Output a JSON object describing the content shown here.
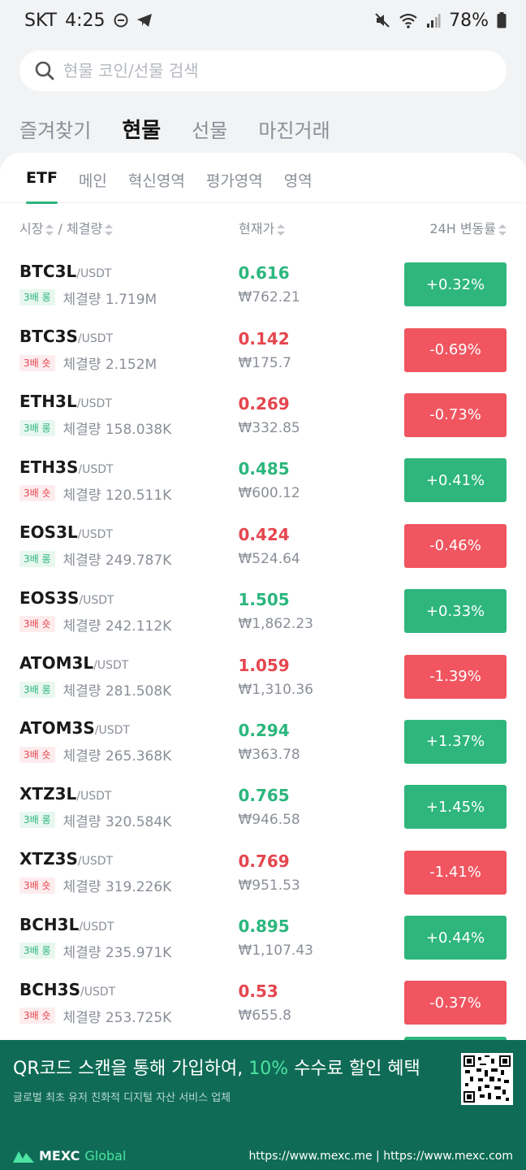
{
  "status_bar": {
    "carrier": "SKT",
    "time": "4:25",
    "battery": "78%"
  },
  "search": {
    "placeholder": "현물 코인/선물 검색"
  },
  "main_tabs": [
    {
      "label": "즐겨찾기"
    },
    {
      "label": "현물",
      "active": true
    },
    {
      "label": "선물"
    },
    {
      "label": "마진거래"
    }
  ],
  "sub_tabs": [
    {
      "label": "ETF",
      "active": true
    },
    {
      "label": "메인"
    },
    {
      "label": "혁신영역"
    },
    {
      "label": "평가영역"
    },
    {
      "label": "영역"
    }
  ],
  "columns": {
    "market": "시장",
    "separator": "/",
    "volume": "체결량",
    "price": "현재가",
    "change": "24H 변동률"
  },
  "rows": [
    {
      "symbol": "BTC3L",
      "quote": "/USDT",
      "badge": "3배 롱",
      "badge_type": "long",
      "volume": "체결량 1.719M",
      "price": "0.616",
      "price_dir": "up",
      "krw": "₩762.21",
      "change": "+0.32%",
      "change_dir": "up"
    },
    {
      "symbol": "BTC3S",
      "quote": "/USDT",
      "badge": "3배 숏",
      "badge_type": "short",
      "volume": "체결량 2.152M",
      "price": "0.142",
      "price_dir": "down",
      "krw": "₩175.7",
      "change": "-0.69%",
      "change_dir": "down"
    },
    {
      "symbol": "ETH3L",
      "quote": "/USDT",
      "badge": "3배 롱",
      "badge_type": "long",
      "volume": "체결량 158.038K",
      "price": "0.269",
      "price_dir": "down",
      "krw": "₩332.85",
      "change": "-0.73%",
      "change_dir": "down"
    },
    {
      "symbol": "ETH3S",
      "quote": "/USDT",
      "badge": "3배 숏",
      "badge_type": "short",
      "volume": "체결량 120.511K",
      "price": "0.485",
      "price_dir": "up",
      "krw": "₩600.12",
      "change": "+0.41%",
      "change_dir": "up"
    },
    {
      "symbol": "EOS3L",
      "quote": "/USDT",
      "badge": "3배 롱",
      "badge_type": "long",
      "volume": "체결량 249.787K",
      "price": "0.424",
      "price_dir": "down",
      "krw": "₩524.64",
      "change": "-0.46%",
      "change_dir": "down"
    },
    {
      "symbol": "EOS3S",
      "quote": "/USDT",
      "badge": "3배 숏",
      "badge_type": "short",
      "volume": "체결량 242.112K",
      "price": "1.505",
      "price_dir": "up",
      "krw": "₩1,862.23",
      "change": "+0.33%",
      "change_dir": "up"
    },
    {
      "symbol": "ATOM3L",
      "quote": "/USDT",
      "badge": "3배 롱",
      "badge_type": "long",
      "volume": "체결량 281.508K",
      "price": "1.059",
      "price_dir": "down",
      "krw": "₩1,310.36",
      "change": "-1.39%",
      "change_dir": "down"
    },
    {
      "symbol": "ATOM3S",
      "quote": "/USDT",
      "badge": "3배 숏",
      "badge_type": "short",
      "volume": "체결량 265.368K",
      "price": "0.294",
      "price_dir": "up",
      "krw": "₩363.78",
      "change": "+1.37%",
      "change_dir": "up"
    },
    {
      "symbol": "XTZ3L",
      "quote": "/USDT",
      "badge": "3배 롱",
      "badge_type": "long",
      "volume": "체결량 320.584K",
      "price": "0.765",
      "price_dir": "up",
      "krw": "₩946.58",
      "change": "+1.45%",
      "change_dir": "up"
    },
    {
      "symbol": "XTZ3S",
      "quote": "/USDT",
      "badge": "3배 숏",
      "badge_type": "short",
      "volume": "체결량 319.226K",
      "price": "0.769",
      "price_dir": "down",
      "krw": "₩951.53",
      "change": "-1.41%",
      "change_dir": "down"
    },
    {
      "symbol": "BCH3L",
      "quote": "/USDT",
      "badge": "3배 롱",
      "badge_type": "long",
      "volume": "체결량 235.971K",
      "price": "0.895",
      "price_dir": "up",
      "krw": "₩1,107.43",
      "change": "+0.44%",
      "change_dir": "up"
    },
    {
      "symbol": "BCH3S",
      "quote": "/USDT",
      "badge": "3배 숏",
      "badge_type": "short",
      "volume": "체결량 253.725K",
      "price": "0.53",
      "price_dir": "down",
      "krw": "₩655.8",
      "change": "-0.37%",
      "change_dir": "down"
    }
  ],
  "banner": {
    "title_pre": "QR코드 스캔을 통해 가입하여, ",
    "title_highlight": "10%",
    "title_post": " 수수료 할인 혜택",
    "subtitle": "글로벌 최초 유저 친화적 디지털 자산 서비스 업체",
    "brand": "MEXC",
    "brand_suffix": "Global",
    "urls": "https://www.mexc.me | https://www.mexc.com"
  },
  "colors": {
    "up": "#2eb67d",
    "down": "#f05560",
    "accent": "#2cb67d",
    "banner_bg": "#0f6b56"
  }
}
